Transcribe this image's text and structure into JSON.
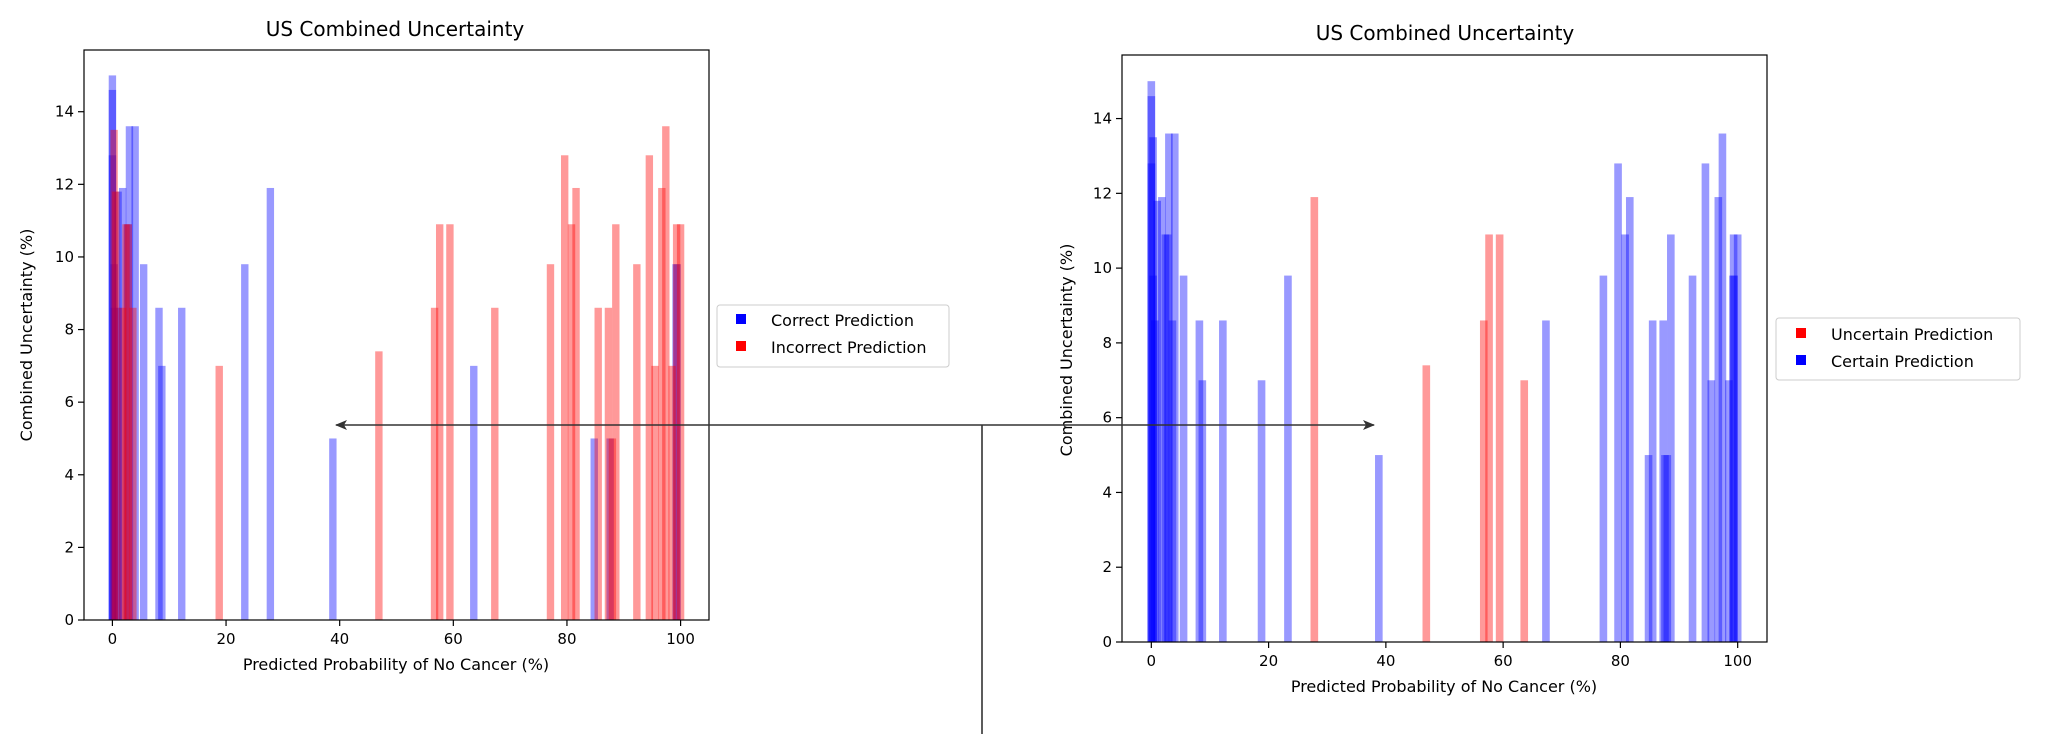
{
  "chart_data": [
    {
      "type": "bar",
      "title": "US Combined Uncertainty",
      "xlabel": "Predicted Probability of No Cancer (%)",
      "ylabel": "Combined Uncertainty (%)",
      "xlim": [
        -5,
        105
      ],
      "ylim": [
        0,
        15.7
      ],
      "xticks": [
        0,
        20,
        40,
        60,
        80,
        100
      ],
      "yticks": [
        0,
        2,
        4,
        6,
        8,
        10,
        12,
        14
      ],
      "grid": false,
      "legend_position": "right-outside",
      "bar_width": 1.3,
      "series": [
        {
          "name": "Correct Prediction",
          "color": "#0000ff",
          "alpha": 0.4,
          "x": [
            0,
            0,
            0,
            0.3,
            0.3,
            1,
            1,
            1.8,
            2.7,
            3,
            4,
            5.5,
            8.2,
            8.7,
            12.2,
            23.3,
            27.8,
            38.8,
            63.6,
            84.8,
            87.6,
            99.2,
            99.4
          ],
          "values": [
            15.0,
            14.6,
            12.8,
            9.8,
            8.6,
            11.8,
            8.6,
            11.9,
            10.9,
            13.6,
            13.6,
            9.8,
            8.6,
            7.0,
            8.6,
            9.8,
            11.9,
            5.0,
            7.0,
            5.0,
            5.0,
            9.8,
            9.8
          ]
        },
        {
          "name": "Incorrect Prediction",
          "color": "#ff0000",
          "alpha": 0.4,
          "x": [
            0.3,
            0.6,
            1.8,
            2.4,
            2.8,
            3.6,
            18.8,
            46.9,
            56.7,
            57.6,
            59.4,
            67.3,
            77.1,
            79.6,
            80.8,
            81.6,
            85.5,
            87.3,
            88.0,
            88.6,
            92.3,
            94.5,
            95.5,
            96.7,
            97.4,
            98.5,
            99.3,
            100
          ],
          "values": [
            13.5,
            11.8,
            8.6,
            10.9,
            10.9,
            8.6,
            7.0,
            7.4,
            8.6,
            10.9,
            10.9,
            8.6,
            9.8,
            12.8,
            10.9,
            11.9,
            8.6,
            8.6,
            5.0,
            10.9,
            9.8,
            12.8,
            7.0,
            11.9,
            13.6,
            7.0,
            10.9,
            10.9
          ]
        }
      ]
    },
    {
      "type": "bar",
      "title": "US Combined Uncertainty",
      "xlabel": "Predicted Probability of No Cancer (%)",
      "ylabel": "Combined Uncertainty (%)",
      "xlim": [
        -5,
        105
      ],
      "ylim": [
        0,
        15.7
      ],
      "xticks": [
        0,
        20,
        40,
        60,
        80,
        100
      ],
      "yticks": [
        0,
        2,
        4,
        6,
        8,
        10,
        12,
        14
      ],
      "grid": false,
      "legend_position": "right-outside",
      "bar_width": 1.3,
      "series": [
        {
          "name": "Uncertain Prediction",
          "color": "#ff0000",
          "alpha": 0.4,
          "x": [
            27.8,
            46.9,
            56.7,
            57.6,
            59.4,
            63.6
          ],
          "values": [
            11.9,
            7.4,
            8.6,
            10.9,
            10.9,
            7.0
          ]
        },
        {
          "name": "Certain Prediction",
          "color": "#0000ff",
          "alpha": 0.4,
          "x": [
            0,
            0,
            0,
            0.3,
            0.3,
            0.6,
            1.0,
            1.8,
            2.4,
            2.8,
            3.0,
            3.6,
            4.0,
            5.5,
            8.2,
            8.7,
            12.2,
            18.8,
            23.3,
            38.8,
            67.3,
            77.1,
            79.6,
            80.8,
            81.6,
            84.8,
            85.5,
            87.3,
            87.6,
            88.0,
            88.6,
            92.3,
            94.5,
            95.5,
            96.7,
            97.4,
            98.5,
            99.2,
            99.3,
            99.4,
            100
          ],
          "values": [
            15.0,
            14.6,
            12.8,
            13.5,
            9.8,
            8.6,
            11.8,
            11.9,
            10.9,
            10.9,
            13.6,
            8.6,
            13.6,
            9.8,
            8.6,
            7.0,
            8.6,
            7.0,
            9.8,
            5.0,
            8.6,
            9.8,
            12.8,
            10.9,
            11.9,
            5.0,
            8.6,
            8.6,
            5.0,
            5.0,
            10.9,
            9.8,
            12.8,
            7.0,
            11.9,
            13.6,
            7.0,
            9.8,
            10.9,
            9.8,
            10.9
          ]
        }
      ]
    }
  ],
  "arrows_color": "#333333",
  "legend_marker_colors": {
    "correct": "#0000ff",
    "incorrect": "#ff0000",
    "uncertain": "#ff0000",
    "certain": "#0000ff"
  }
}
